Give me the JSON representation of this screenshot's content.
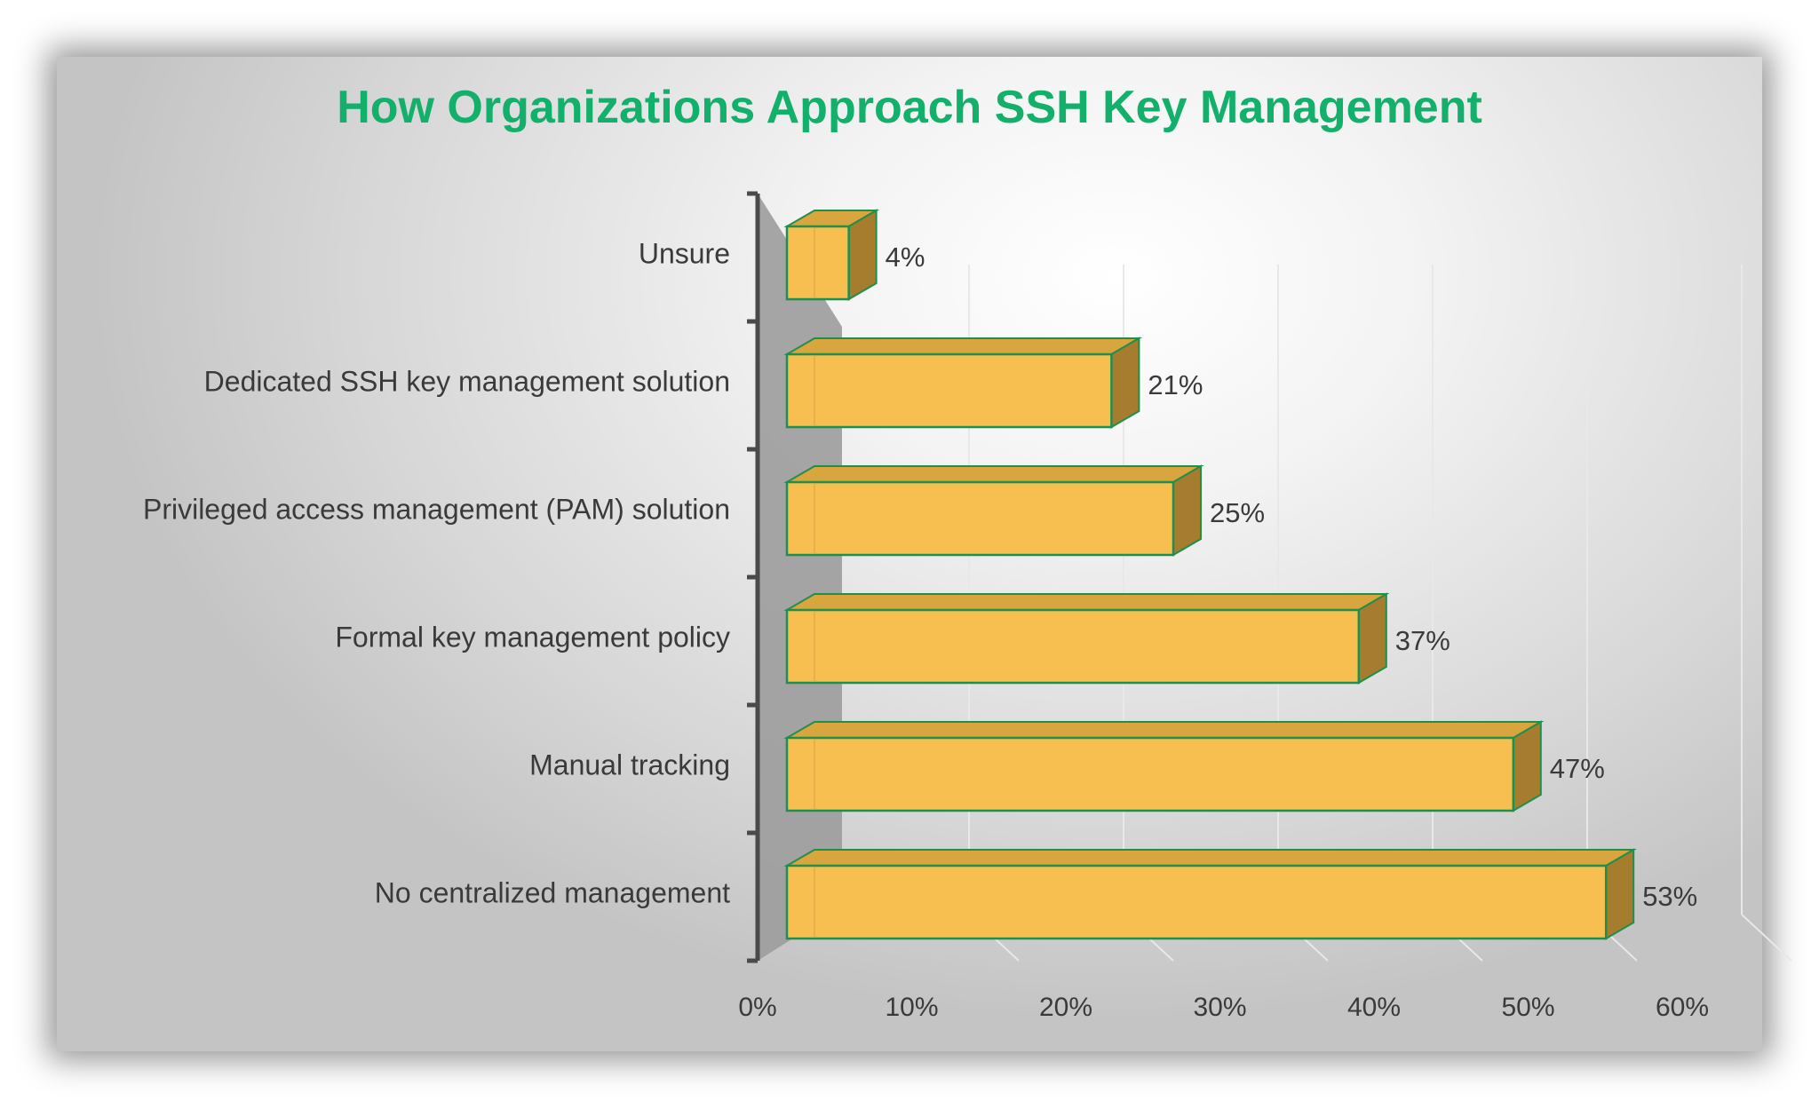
{
  "chart_data": {
    "type": "bar",
    "orientation": "horizontal",
    "title": "How Organizations Approach SSH Key Management",
    "categories": [
      "Unsure",
      "Dedicated SSH key management solution",
      "Privileged access management (PAM) solution",
      "Formal key management policy",
      "Manual tracking",
      "No centralized management"
    ],
    "values": [
      4,
      21,
      25,
      37,
      47,
      53
    ],
    "data_labels": [
      "4%",
      "21%",
      "25%",
      "37%",
      "47%",
      "53%"
    ],
    "xlim": [
      0,
      60
    ],
    "x_ticks": [
      "0%",
      "10%",
      "20%",
      "30%",
      "40%",
      "50%",
      "60%"
    ],
    "grid": true,
    "legend": false,
    "colors": {
      "bar_fill": "#f7bf4f",
      "bar_top": "#d9a53e",
      "bar_side": "#a67c2e",
      "bar_outline": "#1f8f4e",
      "title": "#12b06a",
      "axis": "#4a4a4a",
      "floor": "#9c9c9c"
    }
  }
}
